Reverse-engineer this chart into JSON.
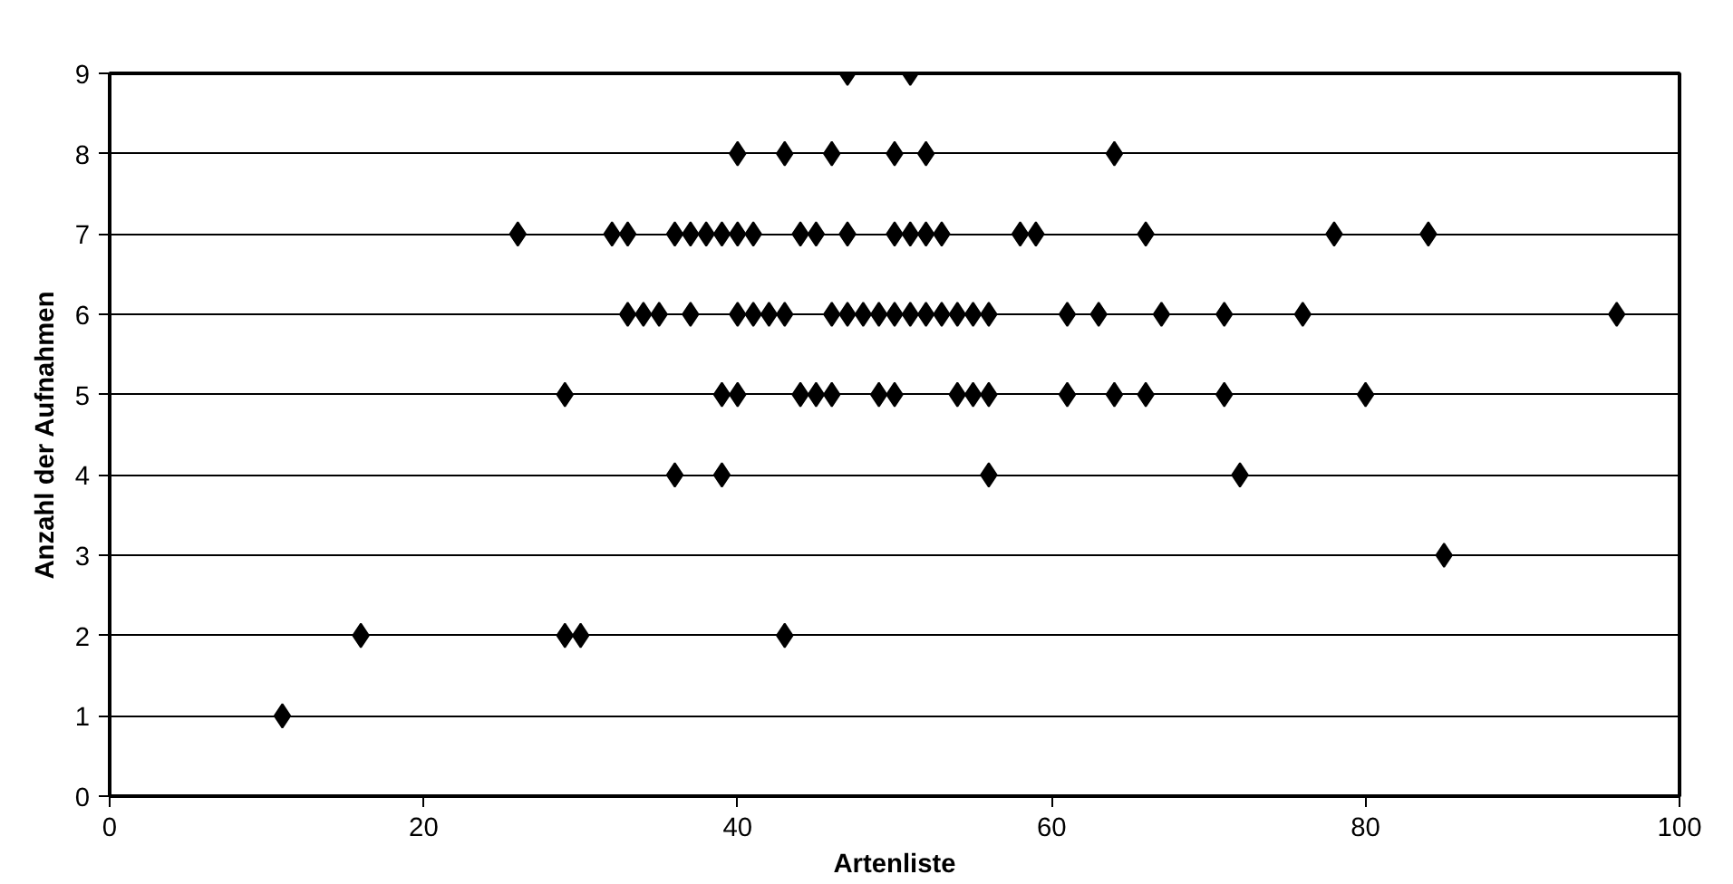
{
  "chart_data": {
    "type": "scatter",
    "xlabel": "Artenliste",
    "ylabel": "Anzahl der Aufnahmen",
    "x": [
      47,
      51,
      40,
      43,
      46,
      50,
      52,
      64,
      26,
      32,
      33,
      36,
      37,
      38,
      39,
      40,
      41,
      44,
      45,
      47,
      50,
      51,
      52,
      53,
      58,
      59,
      66,
      78,
      84,
      33,
      34,
      35,
      37,
      40,
      41,
      42,
      43,
      46,
      47,
      48,
      49,
      50,
      51,
      52,
      53,
      54,
      55,
      56,
      61,
      63,
      67,
      71,
      76,
      96,
      29,
      39,
      40,
      44,
      45,
      46,
      49,
      50,
      54,
      55,
      56,
      61,
      64,
      66,
      71,
      80,
      36,
      39,
      56,
      72,
      85,
      16,
      29,
      30,
      43,
      11
    ],
    "values": [
      9,
      9,
      8,
      8,
      8,
      8,
      8,
      8,
      7,
      7,
      7,
      7,
      7,
      7,
      7,
      7,
      7,
      7,
      7,
      7,
      7,
      7,
      7,
      7,
      7,
      7,
      7,
      7,
      7,
      6,
      6,
      6,
      6,
      6,
      6,
      6,
      6,
      6,
      6,
      6,
      6,
      6,
      6,
      6,
      6,
      6,
      6,
      6,
      6,
      6,
      6,
      6,
      6,
      6,
      5,
      5,
      5,
      5,
      5,
      5,
      5,
      5,
      5,
      5,
      5,
      5,
      5,
      5,
      5,
      5,
      4,
      4,
      4,
      4,
      3,
      2,
      2,
      2,
      2,
      1
    ],
    "color": "#000000",
    "marker": "diamond",
    "xlim": [
      0,
      100
    ],
    "xticks": [
      0,
      20,
      40,
      60,
      80,
      100
    ],
    "ylim": [
      0,
      9
    ],
    "yticks": [
      0,
      1,
      2,
      3,
      4,
      5,
      6,
      7,
      8,
      9
    ],
    "grid": "y"
  }
}
